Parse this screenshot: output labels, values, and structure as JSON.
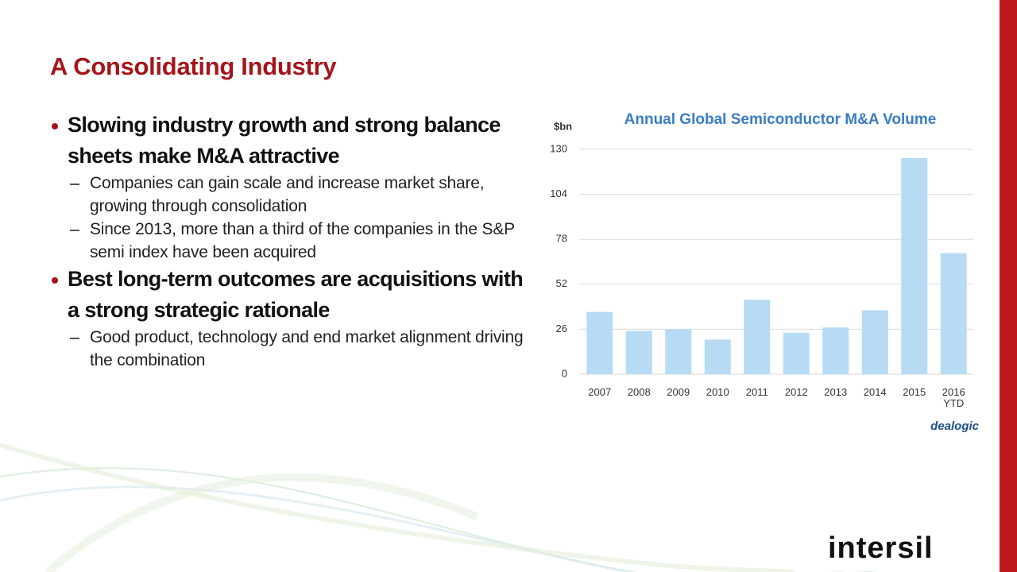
{
  "title": "A Consolidating Industry",
  "bullets": [
    {
      "text": "Slowing industry growth and strong balance sheets make M&A attractive",
      "subs": [
        "Companies can gain scale and increase market share, growing through consolidation",
        "Since 2013, more than a third of the companies in the S&P semi index have been acquired"
      ]
    },
    {
      "text": "Best long-term outcomes are acquisitions with a strong strategic rationale",
      "subs": [
        "Good product, technology and end market alignment driving the combination"
      ]
    }
  ],
  "chart_data": {
    "type": "bar",
    "title": "Annual Global Semiconductor M&A Volume",
    "y_label": "$bn",
    "categories": [
      "2007",
      "2008",
      "2009",
      "2010",
      "2011",
      "2012",
      "2013",
      "2014",
      "2015",
      "2016 YTD"
    ],
    "values": [
      36,
      25,
      26,
      20,
      43,
      24,
      27,
      37,
      125,
      70
    ],
    "color": "#b7dbf5",
    "ylim": [
      0,
      130
    ],
    "yticks": [
      0,
      26,
      52,
      78,
      104,
      130
    ],
    "grid": true,
    "source": "dealogic"
  },
  "logo": "intersil"
}
